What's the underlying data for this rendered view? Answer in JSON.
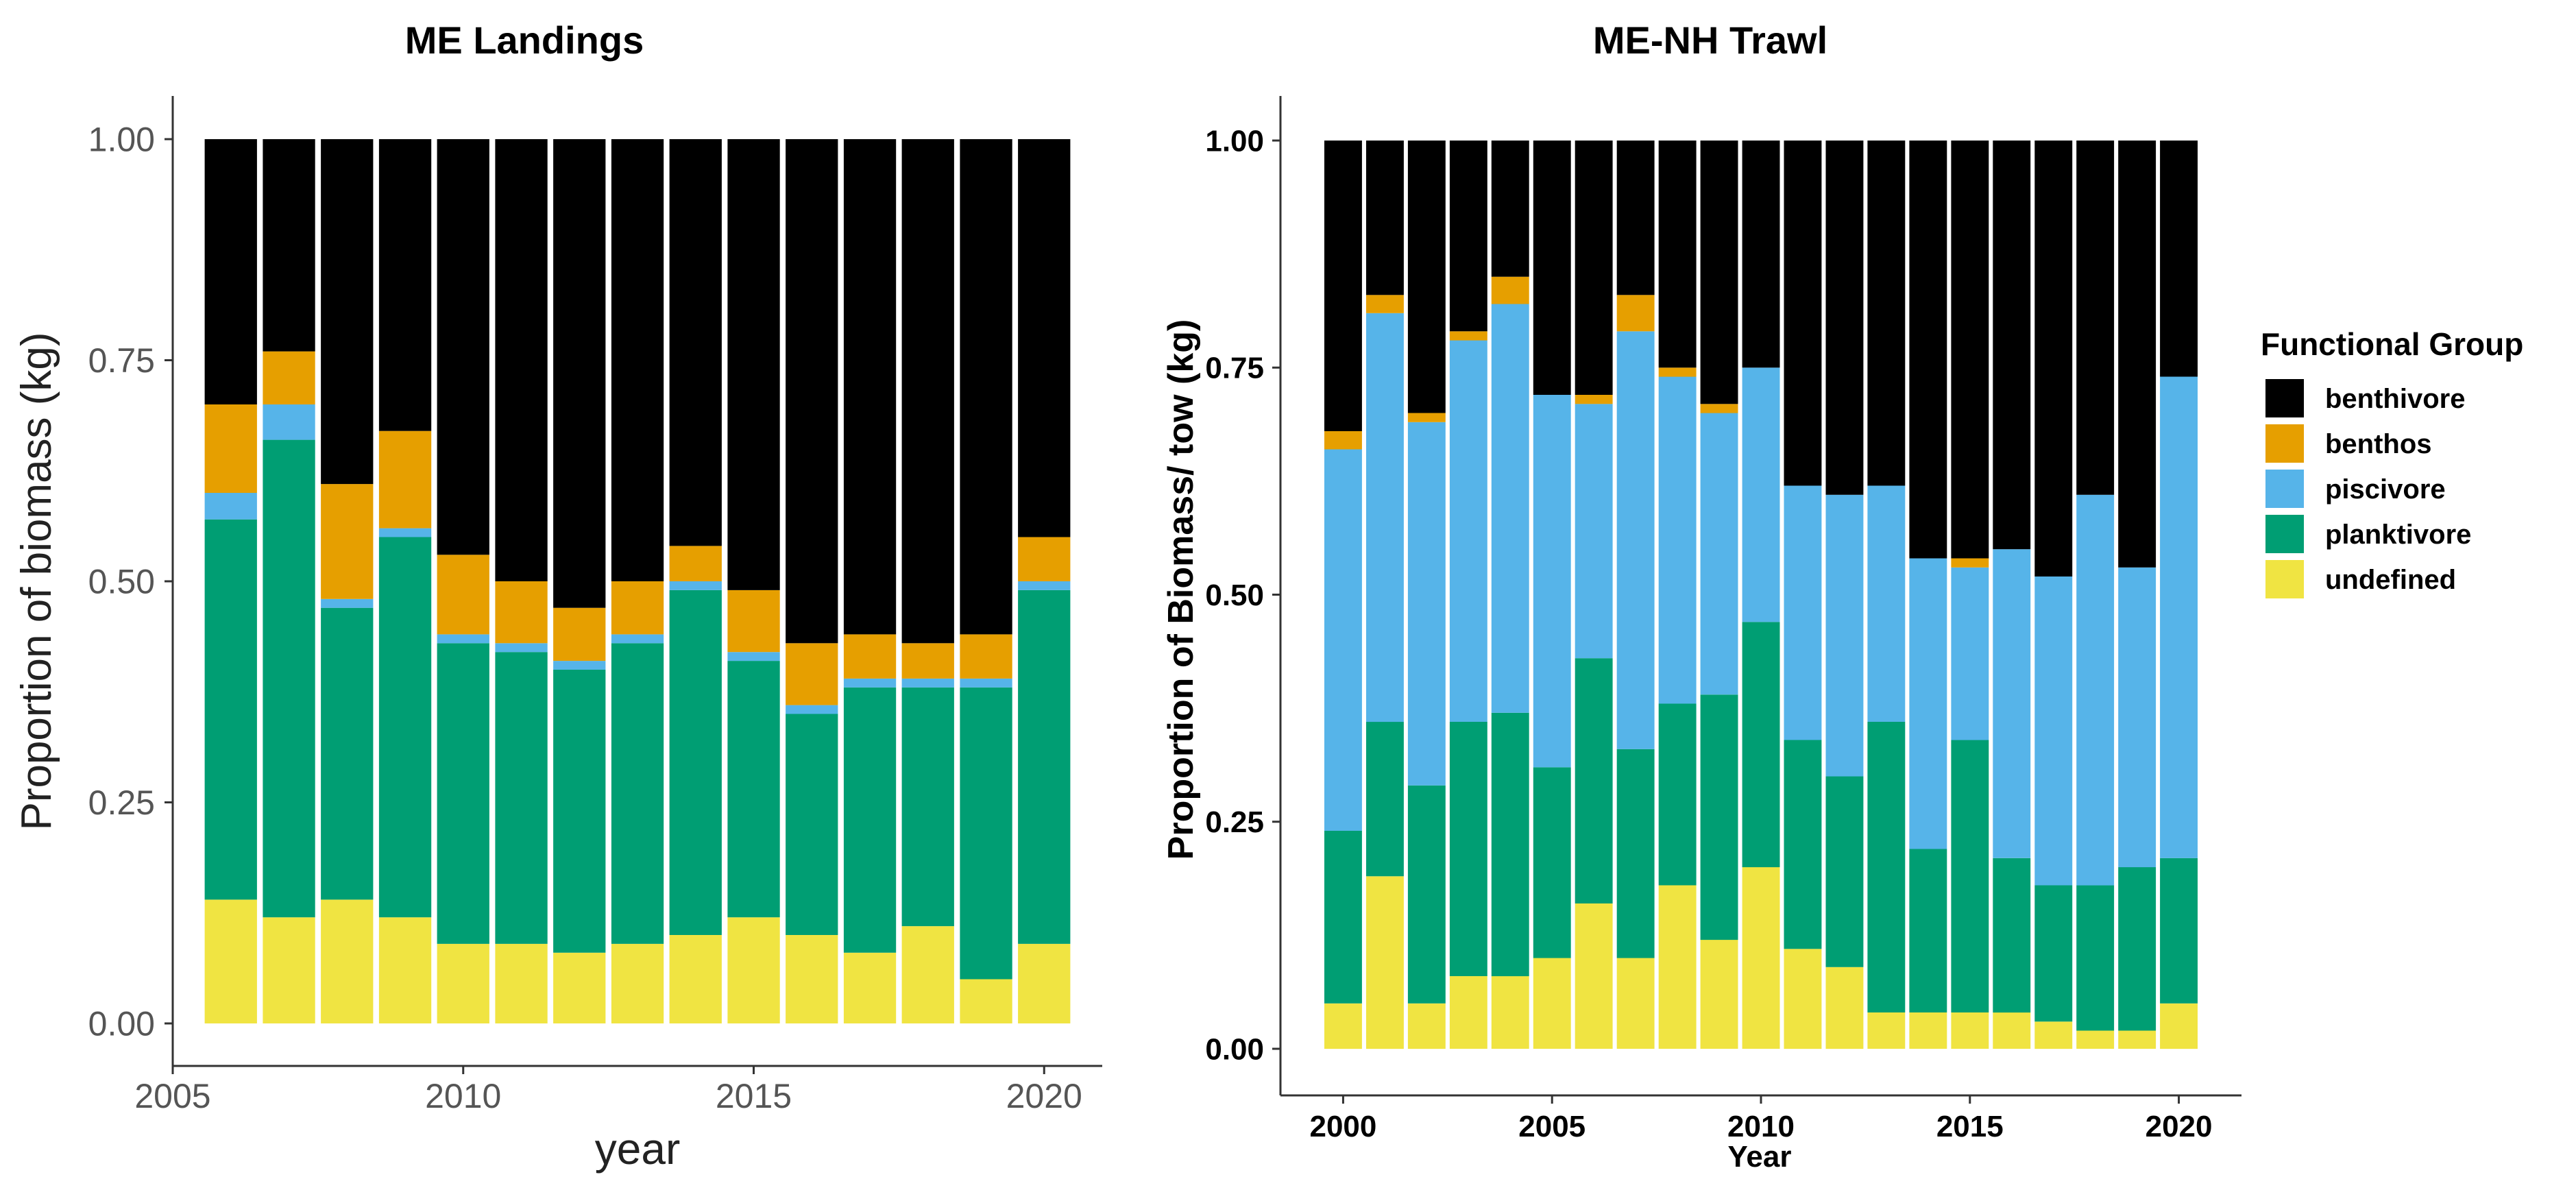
{
  "chart_data": [
    {
      "type": "bar",
      "stacked": true,
      "title": "ME Landings",
      "xlabel": "year",
      "ylabel": "Proportion of biomass (kg)",
      "xlim": [
        2005,
        2021
      ],
      "ylim": [
        0,
        1
      ],
      "xticks": [
        "2005",
        "2010",
        "2015",
        "2020"
      ],
      "yticks": [
        "0.00",
        "0.25",
        "0.50",
        "0.75",
        "1.00"
      ],
      "grid": false,
      "x": [
        2006,
        2007,
        2008,
        2009,
        2010,
        2011,
        2012,
        2013,
        2014,
        2015,
        2016,
        2017,
        2018,
        2019,
        2020
      ],
      "series": [
        {
          "name": "undefined",
          "color": "#F0E442",
          "values": [
            0.14,
            0.12,
            0.14,
            0.12,
            0.09,
            0.09,
            0.08,
            0.09,
            0.1,
            0.12,
            0.1,
            0.08,
            0.11,
            0.05,
            0.09
          ]
        },
        {
          "name": "planktivore",
          "color": "#009E73",
          "values": [
            0.43,
            0.54,
            0.33,
            0.43,
            0.34,
            0.33,
            0.32,
            0.34,
            0.39,
            0.29,
            0.25,
            0.3,
            0.27,
            0.33,
            0.4
          ]
        },
        {
          "name": "piscivore",
          "color": "#56B4E9",
          "values": [
            0.03,
            0.04,
            0.01,
            0.01,
            0.01,
            0.01,
            0.01,
            0.01,
            0.01,
            0.01,
            0.01,
            0.01,
            0.01,
            0.01,
            0.01
          ]
        },
        {
          "name": "benthos",
          "color": "#E69F00",
          "values": [
            0.1,
            0.06,
            0.13,
            0.11,
            0.09,
            0.07,
            0.06,
            0.06,
            0.04,
            0.07,
            0.07,
            0.05,
            0.04,
            0.05,
            0.05
          ]
        },
        {
          "name": "benthivore",
          "color": "#000000",
          "values": [
            0.3,
            0.24,
            0.39,
            0.33,
            0.47,
            0.5,
            0.53,
            0.5,
            0.46,
            0.51,
            0.57,
            0.56,
            0.57,
            0.56,
            0.45
          ]
        }
      ]
    },
    {
      "type": "bar",
      "stacked": true,
      "title": "ME-NH Trawl",
      "xlabel": "Year",
      "ylabel": "Proportion of Biomass/ tow (kg)",
      "xlim": [
        1998.5,
        2021.5
      ],
      "ylim": [
        0,
        1
      ],
      "xticks": [
        "2000",
        "2005",
        "2010",
        "2015",
        "2020"
      ],
      "yticks": [
        "0.00",
        "0.25",
        "0.50",
        "0.75",
        "1.00"
      ],
      "grid": false,
      "x": [
        2000,
        2001,
        2002,
        2003,
        2004,
        2005,
        2006,
        2007,
        2008,
        2009,
        2010,
        2011,
        2012,
        2013,
        2014,
        2015,
        2016,
        2017,
        2018,
        2019,
        2020
      ],
      "series": [
        {
          "name": "undefined",
          "color": "#F0E442",
          "values": [
            0.05,
            0.19,
            0.05,
            0.08,
            0.08,
            0.1,
            0.16,
            0.1,
            0.18,
            0.12,
            0.2,
            0.11,
            0.09,
            0.04,
            0.04,
            0.04,
            0.04,
            0.03,
            0.02,
            0.02,
            0.05
          ]
        },
        {
          "name": "planktivore",
          "color": "#009E73",
          "values": [
            0.19,
            0.17,
            0.24,
            0.28,
            0.29,
            0.21,
            0.27,
            0.23,
            0.2,
            0.27,
            0.27,
            0.23,
            0.21,
            0.32,
            0.18,
            0.3,
            0.17,
            0.15,
            0.16,
            0.18,
            0.16
          ]
        },
        {
          "name": "piscivore",
          "color": "#56B4E9",
          "values": [
            0.42,
            0.45,
            0.4,
            0.42,
            0.45,
            0.41,
            0.28,
            0.46,
            0.36,
            0.31,
            0.28,
            0.28,
            0.31,
            0.26,
            0.32,
            0.19,
            0.34,
            0.34,
            0.43,
            0.33,
            0.53
          ]
        },
        {
          "name": "benthos",
          "color": "#E69F00",
          "values": [
            0.02,
            0.02,
            0.01,
            0.01,
            0.03,
            0.0,
            0.01,
            0.04,
            0.01,
            0.01,
            0.0,
            0.0,
            0.0,
            0.0,
            0.0,
            0.01,
            0.0,
            0.0,
            0.0,
            0.0,
            0.0
          ]
        },
        {
          "name": "benthivore",
          "color": "#000000",
          "values": [
            0.32,
            0.17,
            0.3,
            0.21,
            0.15,
            0.28,
            0.28,
            0.17,
            0.25,
            0.29,
            0.25,
            0.38,
            0.39,
            0.38,
            0.46,
            0.46,
            0.45,
            0.48,
            0.39,
            0.47,
            0.26
          ]
        }
      ]
    }
  ],
  "legend": {
    "title": "Functional Group",
    "items": [
      {
        "label": "benthivore",
        "color": "#000000"
      },
      {
        "label": "benthos",
        "color": "#E69F00"
      },
      {
        "label": "piscivore",
        "color": "#56B4E9"
      },
      {
        "label": "planktivore",
        "color": "#009E73"
      },
      {
        "label": "undefined",
        "color": "#F0E442"
      }
    ]
  }
}
